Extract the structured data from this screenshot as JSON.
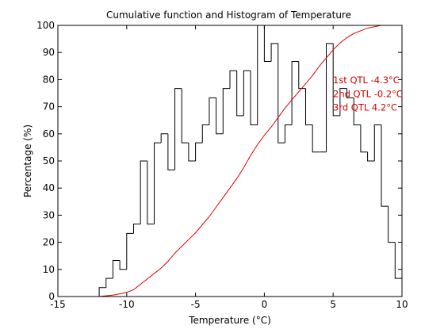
{
  "chart_data": {
    "type": "bar",
    "title": "Cumulative function and Histogram of Temperature",
    "xlabel": "Temperature (°C)",
    "ylabel": "Percentage (%)",
    "xlim": [
      -15,
      10
    ],
    "ylim": [
      0,
      100
    ],
    "xticks": [
      -15,
      -10,
      -5,
      0,
      5,
      10
    ],
    "yticks": [
      0,
      10,
      20,
      30,
      40,
      50,
      60,
      70,
      80,
      90,
      100
    ],
    "grid": false,
    "colors": {
      "histogram": "#000000",
      "cumulative": "#e00000",
      "annotation": "#d40000"
    },
    "series": [
      {
        "kind": "histogram",
        "bin_edges": [
          -12.0,
          -11.5,
          -11.0,
          -10.5,
          -10.0,
          -9.5,
          -9.0,
          -8.5,
          -8.0,
          -7.5,
          -7.0,
          -6.5,
          -6.0,
          -5.5,
          -5.0,
          -4.5,
          -4.0,
          -3.5,
          -3.0,
          -2.5,
          -2.0,
          -1.5,
          -1.0,
          -0.5,
          0.0,
          0.5,
          1.0,
          1.5,
          2.0,
          2.5,
          3.0,
          3.5,
          4.0,
          4.5,
          5.0,
          5.5,
          6.0,
          6.5,
          7.0,
          7.5,
          8.0,
          8.5,
          9.0,
          9.5,
          10.0
        ],
        "values": [
          3.3,
          6.7,
          13.3,
          10,
          23.3,
          26.7,
          50,
          26.7,
          56.7,
          60,
          46.7,
          76.7,
          56.7,
          50,
          56.7,
          63.3,
          73.3,
          60,
          76.7,
          83.3,
          66.7,
          83.3,
          63.3,
          100,
          86.7,
          93.3,
          56.7,
          63.3,
          86.7,
          76.7,
          63.3,
          53.3,
          53.3,
          93.3,
          66.7,
          76.7,
          73.3,
          63.3,
          53.3,
          50,
          63.3,
          33.3,
          20,
          6.7
        ]
      },
      {
        "kind": "cumulative",
        "x": [
          -15,
          -12,
          -11,
          -10,
          -9.5,
          -9,
          -8.5,
          -8,
          -7.5,
          -7,
          -6.5,
          -6,
          -5.5,
          -5,
          -4.5,
          -4,
          -3.5,
          -3,
          -2.5,
          -2,
          -1.5,
          -1,
          -0.5,
          0,
          0.5,
          1,
          1.5,
          2,
          2.5,
          3,
          3.5,
          4,
          4.5,
          5,
          5.5,
          6,
          6.5,
          7,
          7.5,
          8,
          8.5,
          9,
          9.5,
          10
        ],
        "y": [
          0,
          0,
          0.5,
          1.5,
          2.5,
          4.5,
          6.5,
          8.5,
          10.5,
          13,
          16,
          18.5,
          21,
          23.5,
          26.5,
          29.5,
          33,
          36.5,
          40,
          43.5,
          47.5,
          52,
          56,
          59.5,
          62.5,
          66,
          69.5,
          72.5,
          75.5,
          78.5,
          81.5,
          85,
          88,
          91,
          93.5,
          95.5,
          97,
          98,
          99,
          99.5,
          100,
          100,
          100,
          100
        ]
      }
    ],
    "annotations": [
      {
        "text": "1st QTL -4.3°C",
        "value": -4.3
      },
      {
        "text": "2nd QTL -0.2°C",
        "value": -0.2
      },
      {
        "text": "3rd QTL  4.2°C",
        "value": 4.2
      }
    ]
  }
}
